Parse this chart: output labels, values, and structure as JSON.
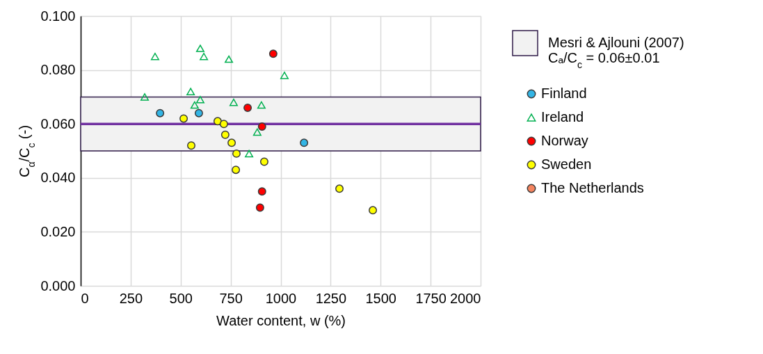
{
  "chart_data": {
    "type": "scatter",
    "xlabel": "Water content, w (%)",
    "ylabel": "C$_{α}$/C$_{c}$ (-)",
    "xlim": [
      0,
      2000
    ],
    "xticks": [
      0,
      250,
      500,
      750,
      1000,
      1250,
      1500,
      1750,
      2000
    ],
    "ylim": [
      0,
      0.1
    ],
    "yticks": [
      {
        "value": 0,
        "label": "0.000"
      },
      {
        "value": 0.02,
        "label": "0.020"
      },
      {
        "value": 0.04,
        "label": "0.040"
      },
      {
        "value": 0.06,
        "label": "0.060"
      },
      {
        "value": 0.08,
        "label": "0.080"
      },
      {
        "value": 0.1,
        "label": "0.100"
      }
    ],
    "grid": true,
    "legend": "right",
    "bands": [
      {
        "axis": "y",
        "from": 0.05,
        "to": 0.07,
        "label": "Mesri & Ajlouni (2007)\nCₐ/C$_{c}$ = 0.06±0.01",
        "color": "#f2f2f2"
      }
    ],
    "ref_lines": [
      {
        "axis": "y",
        "value": 0.06,
        "color": "#7030a0"
      }
    ],
    "series": [
      {
        "name": "Finland",
        "color": "#33b5e5",
        "marker": "circle",
        "x": [
          397,
          591,
          1117
        ],
        "values": [
          0.064,
          0.064,
          0.053
        ]
      },
      {
        "name": "Ireland",
        "color": "#00b050",
        "marker": "triangle",
        "x": [
          320,
          372,
          550,
          570,
          598,
          598,
          616,
          741,
          765,
          904,
          883,
          842,
          1019
        ],
        "values": [
          0.07,
          0.085,
          0.072,
          0.067,
          0.069,
          0.088,
          0.085,
          0.084,
          0.068,
          0.067,
          0.057,
          0.049,
          0.078
        ]
      },
      {
        "name": "Norway",
        "color": "#ff0000",
        "marker": "circle",
        "x": [
          963,
          835,
          907,
          907,
          897
        ],
        "values": [
          0.086,
          0.066,
          0.059,
          0.035,
          0.029
        ]
      },
      {
        "name": "Sweden",
        "color": "#ffff00",
        "marker": "circle",
        "x": [
          515,
          553,
          685,
          716,
          723,
          755,
          779,
          776,
          918,
          1294,
          1461
        ],
        "values": [
          0.062,
          0.052,
          0.061,
          0.06,
          0.056,
          0.053,
          0.049,
          0.043,
          0.046,
          0.036,
          0.028
        ]
      },
      {
        "name": "The Netherlands",
        "color": "#f4845f",
        "marker": "circle"
      }
    ]
  }
}
